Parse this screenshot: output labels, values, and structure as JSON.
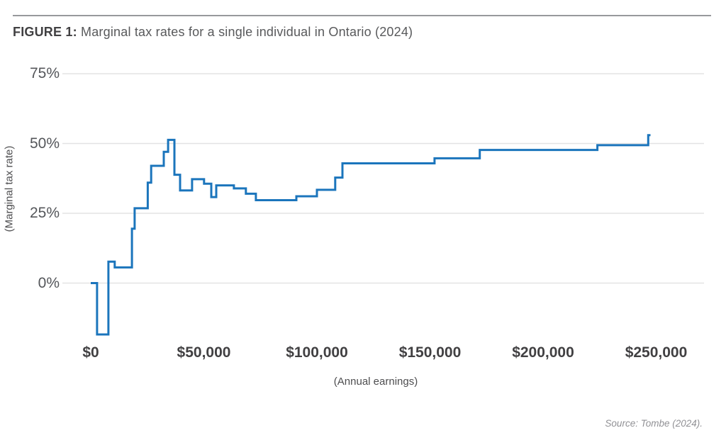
{
  "figure": {
    "label": "FIGURE 1:",
    "title": " Marginal tax rates for a single individual in Ontario (2024)",
    "source": "Source: Tombe (2024)."
  },
  "chart_data": {
    "type": "line",
    "subtype": "step",
    "title": "Marginal tax rates for a single individual in Ontario (2024)",
    "xlabel": "(Annual earnings)",
    "ylabel": "(Marginal tax rate)",
    "xlim": [
      0,
      262000
    ],
    "ylim": [
      -22,
      78
    ],
    "grid": true,
    "legend": "none",
    "line_color": "#1b75bc",
    "grid_color": "#e3e3e4",
    "x_ticks": [
      {
        "label": "$0",
        "value": 0
      },
      {
        "label": "$50,000",
        "value": 50000
      },
      {
        "label": "$100,000",
        "value": 100000
      },
      {
        "label": "$150,000",
        "value": 150000
      },
      {
        "label": "$200,000",
        "value": 200000
      },
      {
        "label": "$250,000",
        "value": 250000
      }
    ],
    "y_ticks": [
      {
        "label": "0%",
        "value": 0
      },
      {
        "label": "25%",
        "value": 25
      },
      {
        "label": "50%",
        "value": 50
      },
      {
        "label": "75%",
        "value": 75
      }
    ],
    "segments": [
      {
        "from": 0,
        "to": 2800,
        "rate": 0
      },
      {
        "from": 2800,
        "to": 7800,
        "rate": -18.4
      },
      {
        "from": 7800,
        "to": 10600,
        "rate": 7.7
      },
      {
        "from": 10600,
        "to": 18200,
        "rate": 5.6
      },
      {
        "from": 18200,
        "to": 19400,
        "rate": 19.5
      },
      {
        "from": 19400,
        "to": 25200,
        "rate": 26.8
      },
      {
        "from": 25200,
        "to": 26700,
        "rate": 36.0
      },
      {
        "from": 26700,
        "to": 32300,
        "rate": 42.0
      },
      {
        "from": 32300,
        "to": 34200,
        "rate": 47.0
      },
      {
        "from": 34200,
        "to": 37000,
        "rate": 51.3
      },
      {
        "from": 37000,
        "to": 39500,
        "rate": 38.8
      },
      {
        "from": 39500,
        "to": 44800,
        "rate": 33.2
      },
      {
        "from": 44800,
        "to": 50100,
        "rate": 37.2
      },
      {
        "from": 50100,
        "to": 53300,
        "rate": 35.6
      },
      {
        "from": 53300,
        "to": 55500,
        "rate": 30.8
      },
      {
        "from": 55500,
        "to": 63300,
        "rate": 35.0
      },
      {
        "from": 63300,
        "to": 68600,
        "rate": 33.9
      },
      {
        "from": 68600,
        "to": 73000,
        "rate": 32.0
      },
      {
        "from": 73000,
        "to": 90900,
        "rate": 29.7
      },
      {
        "from": 90900,
        "to": 100000,
        "rate": 31.1
      },
      {
        "from": 100000,
        "to": 108100,
        "rate": 33.4
      },
      {
        "from": 108100,
        "to": 111300,
        "rate": 37.8
      },
      {
        "from": 111300,
        "to": 152000,
        "rate": 42.9
      },
      {
        "from": 152000,
        "to": 172000,
        "rate": 44.7
      },
      {
        "from": 172000,
        "to": 224000,
        "rate": 47.7
      },
      {
        "from": 224000,
        "to": 246500,
        "rate": 49.4
      },
      {
        "from": 246500,
        "to": 247500,
        "rate": 53.0
      }
    ]
  },
  "colors": {
    "line": "#1b75bc",
    "grid": "#e3e3e4",
    "top_rule": "#97999c",
    "title_text": "#58595b",
    "axis_text": "#414042"
  }
}
